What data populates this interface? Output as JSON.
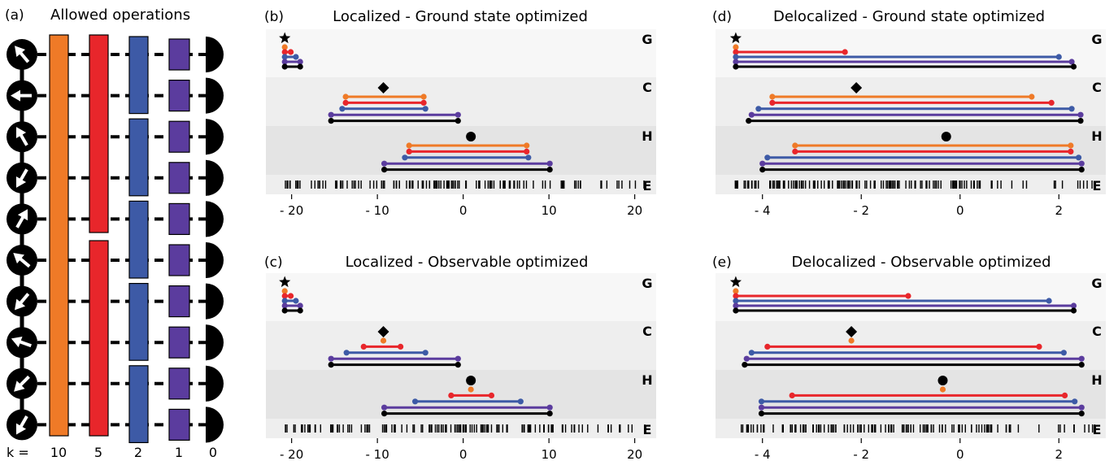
{
  "colors": {
    "orange": "#ef7a27",
    "red": "#e8262b",
    "blue": "#3d5aa6",
    "purple": "#5b3c9e",
    "black": "#000000",
    "band_light": "#f7f7f7",
    "band_mid": "#eeeeee",
    "band_dark": "#e4e4e4"
  },
  "panel_a": {
    "label": "(a)",
    "title": "Allowed operations",
    "k_prefix": "k =",
    "k_values": [
      "10",
      "5",
      "2",
      "1",
      "0"
    ],
    "spin_directions_deg": [
      -130,
      180,
      -120,
      120,
      -60,
      -140,
      130,
      -160,
      135,
      120
    ]
  },
  "panels": [
    {
      "id": "b",
      "label": "(b)",
      "title": "Localized - Ground state optimized",
      "scale": {
        "min": -23,
        "max": 22.5,
        "ticks": [
          -20,
          -10,
          0,
          10,
          20
        ],
        "tick_labels": [
          "- 20",
          "- 10",
          "0",
          "10",
          "20"
        ]
      },
      "bands": {
        "G": "G",
        "C": "C",
        "H": "H",
        "E": "E"
      },
      "groups": [
        {
          "name": "G",
          "marker": "star",
          "marker_x": -20.8,
          "bars": [
            {
              "color": "orange",
              "x1": -20.8,
              "x2": -20.8
            },
            {
              "color": "red",
              "x1": -20.8,
              "x2": -20.1
            },
            {
              "color": "blue",
              "x1": -20.8,
              "x2": -19.5
            },
            {
              "color": "purple",
              "x1": -20.8,
              "x2": -19.0
            },
            {
              "color": "black",
              "x1": -20.8,
              "x2": -19.0
            }
          ]
        },
        {
          "name": "C",
          "marker": "diamond",
          "marker_x": -9.3,
          "bars": [
            {
              "color": "orange",
              "x1": -13.7,
              "x2": -4.6
            },
            {
              "color": "red",
              "x1": -13.7,
              "x2": -4.6
            },
            {
              "color": "blue",
              "x1": -14.1,
              "x2": -4.4
            },
            {
              "color": "purple",
              "x1": -15.4,
              "x2": -0.6
            },
            {
              "color": "black",
              "x1": -15.4,
              "x2": -0.6
            }
          ]
        },
        {
          "name": "H",
          "marker": "circle",
          "marker_x": 0.9,
          "bars": [
            {
              "color": "orange",
              "x1": -6.3,
              "x2": 7.4
            },
            {
              "color": "red",
              "x1": -6.3,
              "x2": 7.4
            },
            {
              "color": "blue",
              "x1": -6.8,
              "x2": 7.6
            },
            {
              "color": "purple",
              "x1": -9.2,
              "x2": 10.1
            },
            {
              "color": "black",
              "x1": -9.2,
              "x2": 10.1
            }
          ]
        }
      ]
    },
    {
      "id": "c",
      "label": "(c)",
      "title": "Localized - Observable optimized",
      "scale": {
        "min": -23,
        "max": 22.5,
        "ticks": [
          -20,
          -10,
          0,
          10,
          20
        ],
        "tick_labels": [
          "- 20",
          "- 10",
          "0",
          "10",
          "20"
        ]
      },
      "bands": {
        "G": "G",
        "C": "C",
        "H": "H",
        "E": "E"
      },
      "groups": [
        {
          "name": "G",
          "marker": "star",
          "marker_x": -20.8,
          "bars": [
            {
              "color": "orange",
              "x1": -20.8,
              "x2": -20.8
            },
            {
              "color": "red",
              "x1": -20.8,
              "x2": -20.1
            },
            {
              "color": "blue",
              "x1": -20.8,
              "x2": -19.5
            },
            {
              "color": "purple",
              "x1": -20.8,
              "x2": -19.0
            },
            {
              "color": "black",
              "x1": -20.8,
              "x2": -19.0
            }
          ]
        },
        {
          "name": "C",
          "marker": "diamond",
          "marker_x": -9.3,
          "bars": [
            {
              "color": "orange",
              "x1": -9.3,
              "x2": -9.3
            },
            {
              "color": "red",
              "x1": -11.6,
              "x2": -7.3
            },
            {
              "color": "blue",
              "x1": -13.6,
              "x2": -4.4
            },
            {
              "color": "purple",
              "x1": -15.4,
              "x2": -0.6
            },
            {
              "color": "black",
              "x1": -15.4,
              "x2": -0.6
            }
          ]
        },
        {
          "name": "H",
          "marker": "circle",
          "marker_x": 0.9,
          "bars": [
            {
              "color": "orange",
              "x1": 0.9,
              "x2": 0.9
            },
            {
              "color": "red",
              "x1": -1.4,
              "x2": 3.3
            },
            {
              "color": "blue",
              "x1": -5.6,
              "x2": 6.7
            },
            {
              "color": "purple",
              "x1": -9.2,
              "x2": 10.1
            },
            {
              "color": "black",
              "x1": -9.2,
              "x2": 10.1
            }
          ]
        }
      ]
    },
    {
      "id": "d",
      "label": "(d)",
      "title": "Delocalized - Ground state optimized",
      "scale": {
        "min": -4.95,
        "max": 2.95,
        "ticks": [
          -4,
          -2,
          0,
          2
        ],
        "tick_labels": [
          "- 4",
          "- 2",
          "0",
          "2"
        ]
      },
      "bands": {
        "G": "G",
        "C": "C",
        "H": "H",
        "E": "E"
      },
      "groups": [
        {
          "name": "G",
          "marker": "star",
          "marker_x": -4.54,
          "bars": [
            {
              "color": "orange",
              "x1": -4.54,
              "x2": -4.54
            },
            {
              "color": "red",
              "x1": -4.54,
              "x2": -2.33
            },
            {
              "color": "blue",
              "x1": -4.54,
              "x2": 2.0
            },
            {
              "color": "purple",
              "x1": -4.54,
              "x2": 2.26
            },
            {
              "color": "black",
              "x1": -4.54,
              "x2": 2.3
            }
          ]
        },
        {
          "name": "C",
          "marker": "diamond",
          "marker_x": -2.1,
          "bars": [
            {
              "color": "orange",
              "x1": -3.8,
              "x2": 1.45
            },
            {
              "color": "red",
              "x1": -3.8,
              "x2": 1.85
            },
            {
              "color": "blue",
              "x1": -4.08,
              "x2": 2.26
            },
            {
              "color": "purple",
              "x1": -4.22,
              "x2": 2.44
            },
            {
              "color": "black",
              "x1": -4.28,
              "x2": 2.44
            }
          ]
        },
        {
          "name": "H",
          "marker": "circle",
          "marker_x": -0.28,
          "bars": [
            {
              "color": "orange",
              "x1": -3.34,
              "x2": 2.24
            },
            {
              "color": "red",
              "x1": -3.34,
              "x2": 2.24
            },
            {
              "color": "blue",
              "x1": -3.9,
              "x2": 2.4
            },
            {
              "color": "purple",
              "x1": -4.0,
              "x2": 2.46
            },
            {
              "color": "black",
              "x1": -4.0,
              "x2": 2.46
            }
          ]
        }
      ]
    },
    {
      "id": "e",
      "label": "(e)",
      "title": "Delocalized - Observable optimized",
      "scale": {
        "min": -4.95,
        "max": 2.95,
        "ticks": [
          -4,
          -2,
          0,
          2
        ],
        "tick_labels": [
          "- 4",
          "- 2",
          "0",
          "2"
        ]
      },
      "bands": {
        "G": "G",
        "C": "C",
        "H": "H",
        "E": "E"
      },
      "groups": [
        {
          "name": "G",
          "marker": "star",
          "marker_x": -4.54,
          "bars": [
            {
              "color": "orange",
              "x1": -4.54,
              "x2": -4.54
            },
            {
              "color": "red",
              "x1": -4.54,
              "x2": -1.05
            },
            {
              "color": "blue",
              "x1": -4.54,
              "x2": 1.8
            },
            {
              "color": "purple",
              "x1": -4.54,
              "x2": 2.3
            },
            {
              "color": "black",
              "x1": -4.54,
              "x2": 2.3
            }
          ]
        },
        {
          "name": "C",
          "marker": "diamond",
          "marker_x": -2.2,
          "bars": [
            {
              "color": "orange",
              "x1": -2.2,
              "x2": -2.2
            },
            {
              "color": "red",
              "x1": -3.9,
              "x2": 1.6
            },
            {
              "color": "blue",
              "x1": -4.22,
              "x2": 2.1
            },
            {
              "color": "purple",
              "x1": -4.32,
              "x2": 2.46
            },
            {
              "color": "black",
              "x1": -4.36,
              "x2": 2.46
            }
          ]
        },
        {
          "name": "H",
          "marker": "circle",
          "marker_x": -0.35,
          "bars": [
            {
              "color": "orange",
              "x1": -0.35,
              "x2": -0.35
            },
            {
              "color": "red",
              "x1": -3.4,
              "x2": 2.12
            },
            {
              "color": "blue",
              "x1": -4.02,
              "x2": 2.32
            },
            {
              "color": "purple",
              "x1": -4.02,
              "x2": 2.46
            },
            {
              "color": "black",
              "x1": -4.02,
              "x2": 2.46
            }
          ]
        }
      ]
    }
  ]
}
